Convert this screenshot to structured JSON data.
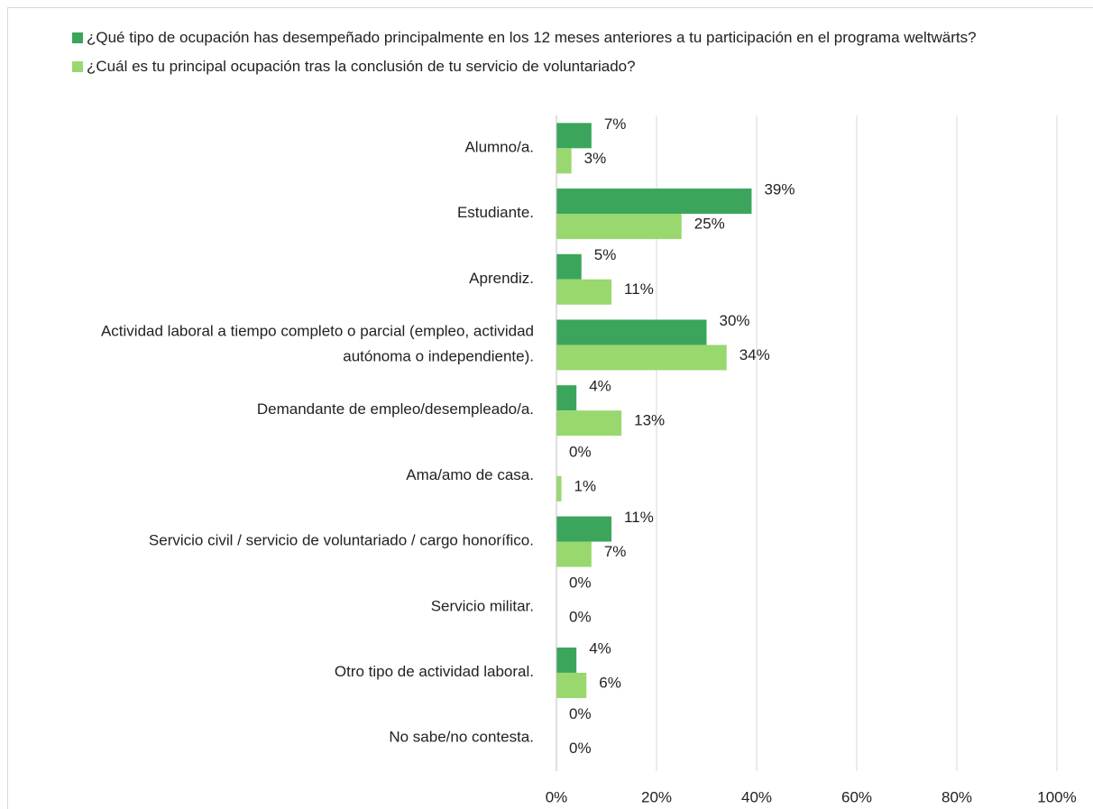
{
  "chart_data": {
    "type": "bar",
    "orientation": "horizontal",
    "categories": [
      "Alumno/a.",
      "Estudiante.",
      "Aprendiz.",
      "Actividad laboral a tiempo completo o parcial (empleo, actividad autónoma o independiente).",
      "Demandante de empleo/desempleado/a.",
      "Ama/amo de casa.",
      "Servicio civil / servicio de voluntariado / cargo honorífico.",
      "Servicio militar.",
      "Otro tipo de actividad laboral.",
      "No sabe/no contesta."
    ],
    "series": [
      {
        "name": "¿Qué tipo de ocupación has desempeñado principalmente en los 12 meses anteriores a tu participación en el programa weltwärts?",
        "color": "#3ba55c",
        "values": [
          7,
          39,
          5,
          30,
          4,
          0,
          11,
          0,
          4,
          0
        ],
        "value_labels": [
          "7%",
          "39%",
          "5%",
          "30%",
          "4%",
          "0%",
          "11%",
          "0%",
          "4%",
          "0%"
        ]
      },
      {
        "name": "¿Cuál es tu principal ocupación tras la conclusión de tu servicio de voluntariado?",
        "color": "#98d86e",
        "values": [
          3,
          25,
          11,
          34,
          13,
          1,
          7,
          0,
          6,
          0
        ],
        "value_labels": [
          "3%",
          "25%",
          "11%",
          "34%",
          "13%",
          "1%",
          "7%",
          "0%",
          "6%",
          "0%"
        ]
      }
    ],
    "xlim": [
      0,
      100
    ],
    "xticks": [
      {
        "value": 0,
        "label": "0%"
      },
      {
        "value": 20,
        "label": "20%"
      },
      {
        "value": 40,
        "label": "40%"
      },
      {
        "value": 60,
        "label": "60%"
      },
      {
        "value": 80,
        "label": "80%"
      },
      {
        "value": 100,
        "label": "100%"
      }
    ],
    "grid": true,
    "legend": "top"
  }
}
